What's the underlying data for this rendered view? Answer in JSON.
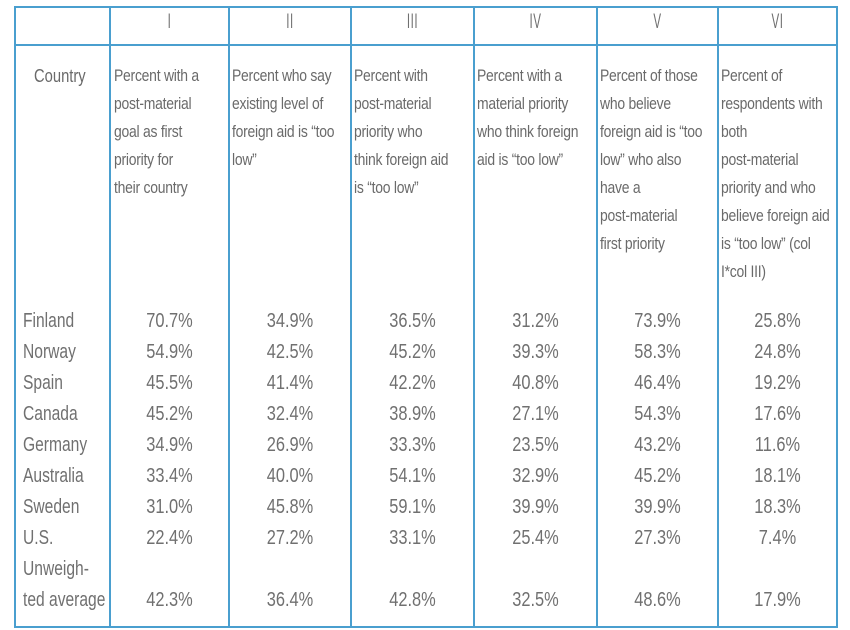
{
  "columns": {
    "numerals": [
      "I",
      "II",
      "III",
      "IV",
      "V",
      "VI"
    ],
    "country_header": "Country",
    "headers": [
      [
        "Percent with a",
        "post-material",
        "goal as first",
        "priority for",
        "their country"
      ],
      [
        "Percent who say",
        "existing level of",
        "foreign aid is “too",
        "low”"
      ],
      [
        "Percent with",
        "post-material",
        "priority who",
        "think foreign aid",
        "is “too low”"
      ],
      [
        "Percent with a",
        "material priority",
        "who think foreign",
        "aid is “too low”"
      ],
      [
        "Percent of those",
        "who believe",
        "foreign aid is “too",
        "low” who also",
        "have a",
        "post-material",
        "first priority"
      ],
      [
        "Percent of",
        "respondents with",
        "both",
        "post-material",
        "priority and who",
        "believe foreign aid",
        "is “too low” (col",
        "I*col III)"
      ]
    ]
  },
  "rows": [
    {
      "country": "Finland",
      "values": [
        "70.7%",
        "34.9%",
        "36.5%",
        "31.2%",
        "73.9%",
        "25.8%"
      ]
    },
    {
      "country": "Norway",
      "values": [
        "54.9%",
        "42.5%",
        "45.2%",
        "39.3%",
        "58.3%",
        "24.8%"
      ]
    },
    {
      "country": "Spain",
      "values": [
        "45.5%",
        "41.4%",
        "42.2%",
        "40.8%",
        "46.4%",
        "19.2%"
      ]
    },
    {
      "country": "Canada",
      "values": [
        "45.2%",
        "32.4%",
        "38.9%",
        "27.1%",
        "54.3%",
        "17.6%"
      ]
    },
    {
      "country": "Germany",
      "values": [
        "34.9%",
        "26.9%",
        "33.3%",
        "23.5%",
        "43.2%",
        "11.6%"
      ]
    },
    {
      "country": "Australia",
      "values": [
        "33.4%",
        "40.0%",
        "54.1%",
        "32.9%",
        "45.2%",
        "18.1%"
      ]
    },
    {
      "country": "Sweden",
      "values": [
        "31.0%",
        "45.8%",
        "59.1%",
        "39.9%",
        "39.9%",
        "18.3%"
      ]
    },
    {
      "country": "U.S.",
      "values": [
        "22.4%",
        "27.2%",
        "33.1%",
        "25.4%",
        "27.3%",
        "7.4%"
      ]
    }
  ],
  "average": {
    "label_line1": "Unweigh-",
    "label_line2": "ted average",
    "values": [
      "42.3%",
      "36.4%",
      "42.8%",
      "32.5%",
      "48.6%",
      "17.9%"
    ]
  },
  "colors": {
    "rule": "#4a9fcf",
    "text": "#6e6e6e"
  }
}
